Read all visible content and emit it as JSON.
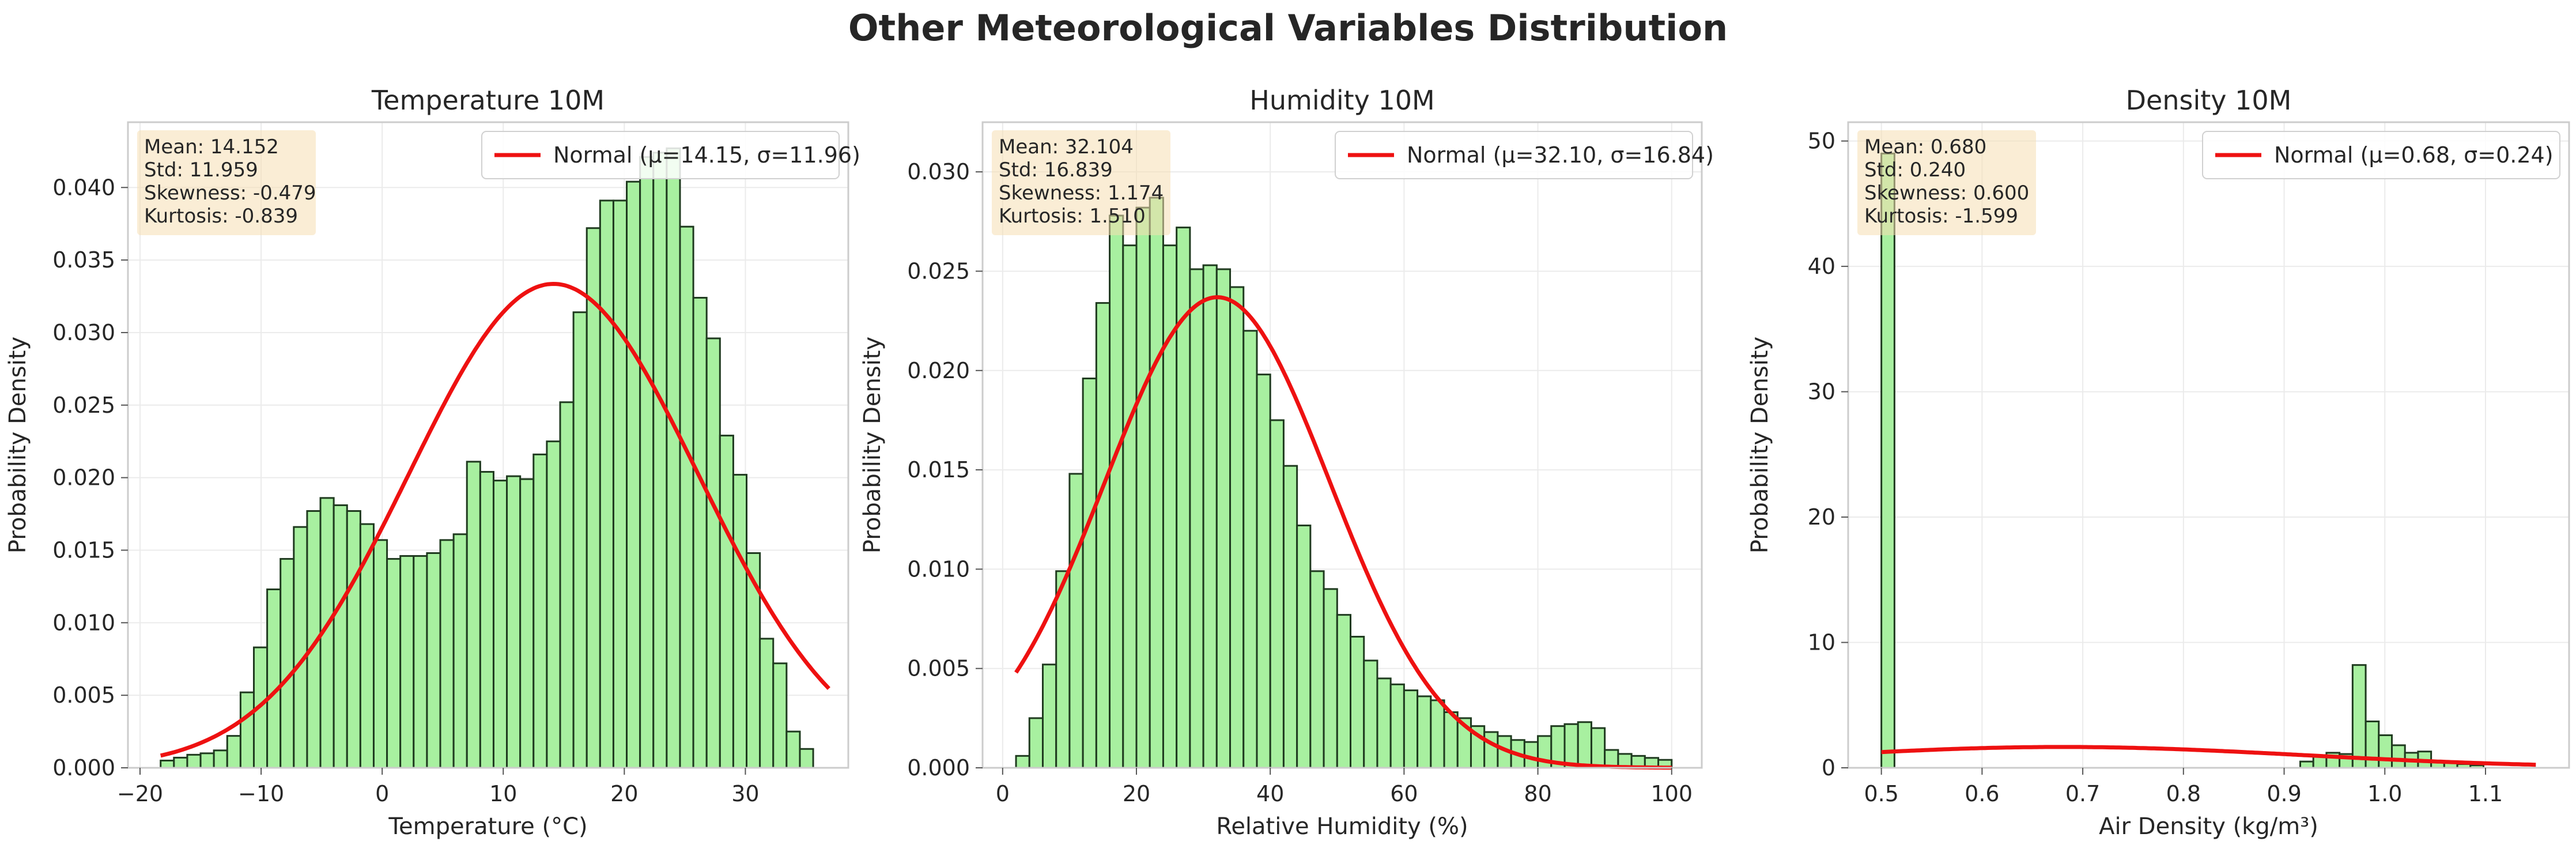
{
  "figure_title": "Other Meteorological Variables Distribution",
  "colors": {
    "bar_fill": "#a8f0a0",
    "bar_edge": "#1f3a1f",
    "curve": "#ee1111",
    "stats_box": "#f5deb3",
    "grid": "#ebebeb",
    "axes_edge": "#cccccc"
  },
  "chart_data": [
    {
      "type": "bar",
      "title": "Temperature 10M",
      "xlabel": "Temperature (°C)",
      "ylabel": "Probability Density",
      "xlim": [
        -21,
        38.5
      ],
      "ylim": [
        0,
        0.0445
      ],
      "xticks": [
        -20,
        -10,
        0,
        10,
        20,
        30
      ],
      "xtick_labels": [
        "−20",
        "−10",
        "0",
        "10",
        "20",
        "30"
      ],
      "yticks": [
        0,
        0.005,
        0.01,
        0.015,
        0.02,
        0.025,
        0.03,
        0.035,
        0.04
      ],
      "ytick_labels": [
        "0.000",
        "0.005",
        "0.010",
        "0.015",
        "0.020",
        "0.025",
        "0.030",
        "0.035",
        "0.040"
      ],
      "bin_start": -18.3,
      "bin_width": 1.1,
      "values": [
        0.0005,
        0.0007,
        0.0009,
        0.001,
        0.0012,
        0.0022,
        0.0052,
        0.0083,
        0.0123,
        0.0144,
        0.0166,
        0.0177,
        0.0186,
        0.0181,
        0.0177,
        0.0168,
        0.0157,
        0.0144,
        0.0146,
        0.0146,
        0.0148,
        0.0157,
        0.0161,
        0.0211,
        0.0204,
        0.0198,
        0.0201,
        0.0199,
        0.0216,
        0.0225,
        0.0252,
        0.0314,
        0.0372,
        0.0391,
        0.0391,
        0.0404,
        0.0421,
        0.0424,
        0.0427,
        0.0373,
        0.0324,
        0.0296,
        0.0229,
        0.0202,
        0.0148,
        0.0089,
        0.0072,
        0.0025,
        0.0013
      ],
      "normal": {
        "mu": 14.15,
        "sigma": 11.96,
        "x_range": [
          -18.3,
          36.9
        ]
      },
      "legend": "Normal (μ=14.15, σ=11.96)",
      "legend_position": "top-right",
      "stats": [
        "Mean: 14.152",
        "Std: 11.959",
        "Skewness: -0.479",
        "Kurtosis: -0.839"
      ]
    },
    {
      "type": "bar",
      "title": "Humidity 10M",
      "xlabel": "Relative Humidity (%)",
      "ylabel": "Probability Density",
      "xlim": [
        -3,
        104.5
      ],
      "ylim": [
        0,
        0.0325
      ],
      "xticks": [
        0,
        20,
        40,
        60,
        80,
        100
      ],
      "xtick_labels": [
        "0",
        "20",
        "40",
        "60",
        "80",
        "100"
      ],
      "yticks": [
        0,
        0.005,
        0.01,
        0.015,
        0.02,
        0.025,
        0.03
      ],
      "ytick_labels": [
        "0.000",
        "0.005",
        "0.010",
        "0.015",
        "0.020",
        "0.025",
        "0.030"
      ],
      "bin_start": 2,
      "bin_width": 2,
      "values": [
        0.0006,
        0.0025,
        0.0052,
        0.0099,
        0.0148,
        0.0196,
        0.0234,
        0.0278,
        0.0263,
        0.0282,
        0.0287,
        0.0263,
        0.0272,
        0.0251,
        0.0253,
        0.0251,
        0.0242,
        0.022,
        0.0198,
        0.0175,
        0.0152,
        0.0122,
        0.0099,
        0.009,
        0.0077,
        0.0066,
        0.0054,
        0.0045,
        0.0042,
        0.0039,
        0.0036,
        0.0034,
        0.0028,
        0.0025,
        0.0021,
        0.0018,
        0.0016,
        0.0014,
        0.0013,
        0.0016,
        0.0021,
        0.0022,
        0.0023,
        0.002,
        0.0009,
        0.0007,
        0.0006,
        0.0005,
        0.0004
      ],
      "normal": {
        "mu": 32.1,
        "sigma": 16.84,
        "x_range": [
          2,
          100
        ]
      },
      "legend": "Normal (μ=32.10, σ=16.84)",
      "legend_position": "top-right",
      "stats": [
        "Mean: 32.104",
        "Std: 16.839",
        "Skewness: 1.174",
        "Kurtosis: 1.510"
      ]
    },
    {
      "type": "bar",
      "title": "Density 10M",
      "xlabel": "Air Density (kg/m³)",
      "ylabel": "Probability Density",
      "xlim": [
        0.467,
        1.183
      ],
      "ylim": [
        0,
        51.5
      ],
      "xticks": [
        0.5,
        0.6,
        0.7,
        0.8,
        0.9,
        1.0,
        1.1
      ],
      "xtick_labels": [
        "0.5",
        "0.6",
        "0.7",
        "0.8",
        "0.9",
        "1.0",
        "1.1"
      ],
      "yticks": [
        0,
        10,
        20,
        30,
        40,
        50
      ],
      "ytick_labels": [
        "0",
        "10",
        "20",
        "30",
        "40",
        "50"
      ],
      "bin_start": 0.5,
      "bin_width": 0.013,
      "values": [
        49.0,
        0,
        0,
        0,
        0,
        0,
        0,
        0,
        0,
        0,
        0,
        0,
        0,
        0,
        0,
        0,
        0,
        0,
        0,
        0,
        0,
        0,
        0,
        0,
        0,
        0,
        0,
        0,
        0,
        0,
        0,
        0,
        0.5,
        1.0,
        1.2,
        1.1,
        8.2,
        3.7,
        2.6,
        1.8,
        1.2,
        1.3,
        0.5,
        0.4,
        0.3,
        0.2
      ],
      "normal": {
        "mu": 0.68,
        "sigma": 0.24,
        "x_range": [
          0.5,
          1.15
        ]
      },
      "legend": "Normal (μ=0.68, σ=0.24)",
      "legend_position": "top-right",
      "stats": [
        "Mean: 0.680",
        "Std: 0.240",
        "Skewness: 0.600",
        "Kurtosis: -1.599"
      ]
    }
  ]
}
